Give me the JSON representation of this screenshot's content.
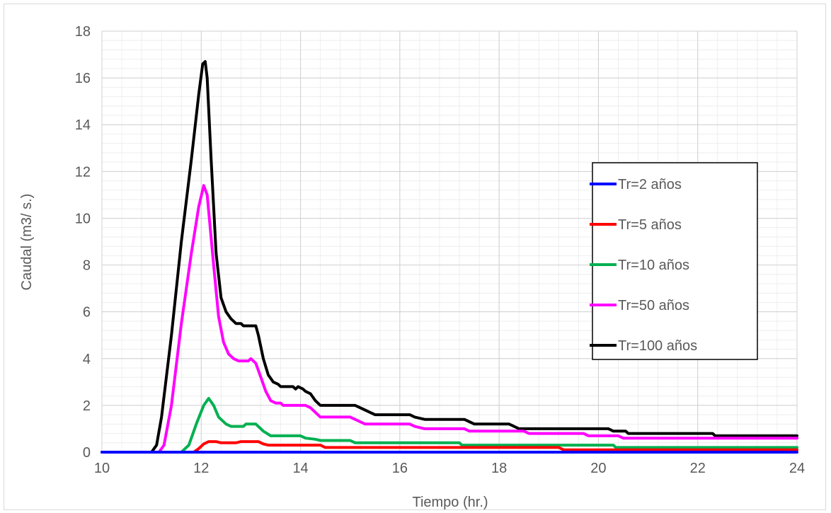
{
  "chart_data": {
    "type": "line",
    "xlabel": "Tiempo (hr.)",
    "ylabel": "Caudal (m3/ s.)",
    "xlim": [
      10,
      24
    ],
    "ylim": [
      0,
      18
    ],
    "x_ticks": [
      "10",
      "12",
      "14",
      "16",
      "18",
      "20",
      "22",
      "24"
    ],
    "y_ticks": [
      "0",
      "2",
      "4",
      "6",
      "8",
      "10",
      "12",
      "14",
      "16",
      "18"
    ],
    "grid": "major and minor",
    "legend_position": "right",
    "series": [
      {
        "name": "Tr=2 años",
        "color": "#0000ff",
        "points": [
          [
            10,
            0
          ],
          [
            24,
            0
          ]
        ]
      },
      {
        "name": "Tr=5 años",
        "color": "#ff0000",
        "points": [
          [
            10,
            0
          ],
          [
            11.85,
            0
          ],
          [
            11.95,
            0.15
          ],
          [
            12.05,
            0.35
          ],
          [
            12.15,
            0.45
          ],
          [
            12.3,
            0.45
          ],
          [
            12.4,
            0.4
          ],
          [
            12.7,
            0.4
          ],
          [
            12.8,
            0.45
          ],
          [
            13.15,
            0.45
          ],
          [
            13.25,
            0.35
          ],
          [
            13.35,
            0.3
          ],
          [
            14.4,
            0.3
          ],
          [
            14.5,
            0.2
          ],
          [
            19.2,
            0.2
          ],
          [
            19.3,
            0.1
          ],
          [
            24,
            0.1
          ]
        ]
      },
      {
        "name": "Tr=10 años",
        "color": "#00b050",
        "points": [
          [
            10,
            0
          ],
          [
            11.6,
            0
          ],
          [
            11.75,
            0.3
          ],
          [
            11.9,
            1.2
          ],
          [
            12.05,
            2.0
          ],
          [
            12.15,
            2.3
          ],
          [
            12.25,
            2.0
          ],
          [
            12.35,
            1.5
          ],
          [
            12.5,
            1.2
          ],
          [
            12.6,
            1.1
          ],
          [
            12.85,
            1.1
          ],
          [
            12.9,
            1.2
          ],
          [
            13.1,
            1.2
          ],
          [
            13.25,
            0.9
          ],
          [
            13.4,
            0.7
          ],
          [
            14.0,
            0.7
          ],
          [
            14.1,
            0.6
          ],
          [
            14.3,
            0.55
          ],
          [
            14.4,
            0.5
          ],
          [
            15.0,
            0.5
          ],
          [
            15.1,
            0.4
          ],
          [
            17.2,
            0.4
          ],
          [
            17.25,
            0.3
          ],
          [
            20.3,
            0.3
          ],
          [
            20.35,
            0.2
          ],
          [
            24,
            0.2
          ]
        ]
      },
      {
        "name": "Tr=50 años",
        "color": "#ff00ff",
        "points": [
          [
            10,
            0
          ],
          [
            11.15,
            0
          ],
          [
            11.25,
            0.3
          ],
          [
            11.4,
            2.0
          ],
          [
            11.6,
            5.5
          ],
          [
            11.8,
            8.5
          ],
          [
            11.95,
            10.5
          ],
          [
            12.05,
            11.4
          ],
          [
            12.12,
            11.0
          ],
          [
            12.25,
            8.0
          ],
          [
            12.35,
            5.8
          ],
          [
            12.45,
            4.7
          ],
          [
            12.55,
            4.2
          ],
          [
            12.65,
            4.0
          ],
          [
            12.75,
            3.9
          ],
          [
            12.95,
            3.9
          ],
          [
            13.0,
            4.0
          ],
          [
            13.1,
            3.8
          ],
          [
            13.2,
            3.2
          ],
          [
            13.3,
            2.6
          ],
          [
            13.4,
            2.2
          ],
          [
            13.5,
            2.1
          ],
          [
            13.6,
            2.1
          ],
          [
            13.65,
            2.0
          ],
          [
            14.1,
            2.0
          ],
          [
            14.2,
            1.9
          ],
          [
            14.3,
            1.7
          ],
          [
            14.4,
            1.5
          ],
          [
            15.0,
            1.5
          ],
          [
            15.1,
            1.4
          ],
          [
            15.2,
            1.3
          ],
          [
            15.3,
            1.2
          ],
          [
            16.2,
            1.2
          ],
          [
            16.3,
            1.1
          ],
          [
            16.5,
            1.0
          ],
          [
            17.3,
            1.0
          ],
          [
            17.4,
            0.9
          ],
          [
            18.5,
            0.9
          ],
          [
            18.6,
            0.8
          ],
          [
            19.7,
            0.8
          ],
          [
            19.8,
            0.7
          ],
          [
            20.4,
            0.7
          ],
          [
            20.5,
            0.6
          ],
          [
            24,
            0.6
          ]
        ]
      },
      {
        "name": "Tr=100 años",
        "color": "#000000",
        "points": [
          [
            10,
            0
          ],
          [
            11.0,
            0
          ],
          [
            11.1,
            0.3
          ],
          [
            11.2,
            1.5
          ],
          [
            11.4,
            5.0
          ],
          [
            11.6,
            9.0
          ],
          [
            11.8,
            12.5
          ],
          [
            11.95,
            15.3
          ],
          [
            12.03,
            16.6
          ],
          [
            12.08,
            16.7
          ],
          [
            12.12,
            16.0
          ],
          [
            12.2,
            12.5
          ],
          [
            12.3,
            8.5
          ],
          [
            12.4,
            6.6
          ],
          [
            12.5,
            6.0
          ],
          [
            12.6,
            5.7
          ],
          [
            12.7,
            5.5
          ],
          [
            12.8,
            5.5
          ],
          [
            12.85,
            5.4
          ],
          [
            13.0,
            5.4
          ],
          [
            13.1,
            5.4
          ],
          [
            13.15,
            5.0
          ],
          [
            13.25,
            4.0
          ],
          [
            13.35,
            3.3
          ],
          [
            13.45,
            3.0
          ],
          [
            13.55,
            2.9
          ],
          [
            13.6,
            2.8
          ],
          [
            13.85,
            2.8
          ],
          [
            13.9,
            2.7
          ],
          [
            13.95,
            2.8
          ],
          [
            14.05,
            2.7
          ],
          [
            14.1,
            2.6
          ],
          [
            14.2,
            2.5
          ],
          [
            14.3,
            2.2
          ],
          [
            14.4,
            2.0
          ],
          [
            15.1,
            2.0
          ],
          [
            15.2,
            1.9
          ],
          [
            15.3,
            1.8
          ],
          [
            15.4,
            1.7
          ],
          [
            15.5,
            1.6
          ],
          [
            16.2,
            1.6
          ],
          [
            16.3,
            1.5
          ],
          [
            16.5,
            1.4
          ],
          [
            17.3,
            1.4
          ],
          [
            17.4,
            1.3
          ],
          [
            17.5,
            1.2
          ],
          [
            18.2,
            1.2
          ],
          [
            18.3,
            1.1
          ],
          [
            18.4,
            1.0
          ],
          [
            20.2,
            1.0
          ],
          [
            20.3,
            0.9
          ],
          [
            20.55,
            0.9
          ],
          [
            20.6,
            0.8
          ],
          [
            22.3,
            0.8
          ],
          [
            22.35,
            0.7
          ],
          [
            24,
            0.7
          ]
        ]
      }
    ]
  }
}
